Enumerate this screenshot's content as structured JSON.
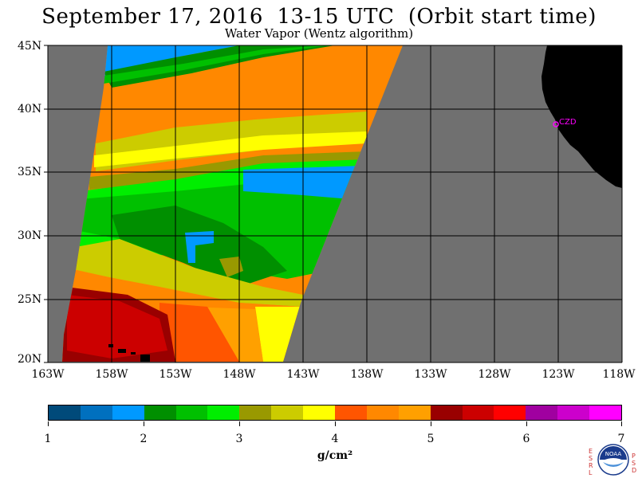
{
  "title": "September 17, 2016  13-15 UTC  (Orbit start time)",
  "subtitle": "Water Vapor (Wentz algorithm)",
  "station_label": "CZD",
  "latitude_labels": [
    "45N",
    "40N",
    "35N",
    "30N",
    "25N",
    "20N"
  ],
  "longitude_labels": [
    "163W",
    "158W",
    "153W",
    "148W",
    "143W",
    "138W",
    "133W",
    "128W",
    "123W",
    "118W"
  ],
  "colorbar": {
    "colors": [
      "#004a7a",
      "#0070bf",
      "#0099ff",
      "#008f00",
      "#00c000",
      "#00ee00",
      "#999900",
      "#cccc00",
      "#ffff00",
      "#ff5500",
      "#ff8800",
      "#ffa000",
      "#990000",
      "#cc0000",
      "#ff0000",
      "#a000a0",
      "#cc00cc",
      "#ff00ff"
    ],
    "tick_labels": [
      "1",
      "2",
      "3",
      "4",
      "5",
      "6",
      "7"
    ],
    "units": "g/cm²"
  },
  "logo": {
    "name": "NOAA",
    "left_letters": "ESRL",
    "right_letters": "PSD"
  },
  "colors": {
    "land": "#000000",
    "no_data": "#707070",
    "grid": "#000000"
  }
}
